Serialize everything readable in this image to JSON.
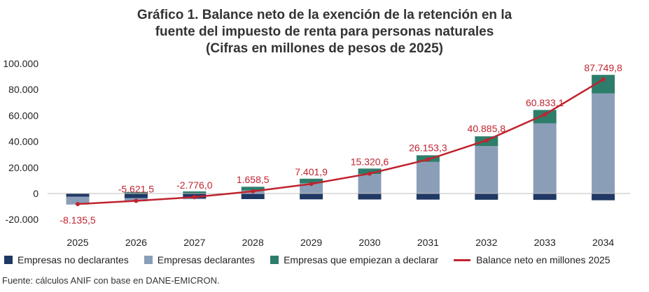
{
  "chart_data": {
    "type": "bar",
    "title_lines": [
      "Gráfico 1. Balance neto de la exención de la retención en la",
      "fuente del impuesto de renta para personas naturales",
      "(Cifras en millones de pesos de 2025)"
    ],
    "categories": [
      "2025",
      "2026",
      "2027",
      "2028",
      "2029",
      "2030",
      "2031",
      "2032",
      "2033",
      "2034"
    ],
    "y_ticks": [
      -20000,
      0,
      20000,
      40000,
      60000,
      80000,
      100000
    ],
    "y_tick_labels": [
      "-20.000",
      "0",
      "20.000",
      "40.000",
      "60.000",
      "80.000",
      "100.000"
    ],
    "ylim": [
      -20000,
      100000
    ],
    "series": [
      {
        "name": "Empresas no declarantes",
        "kind": "bar",
        "color": "#1f3864",
        "values": [
          -2500,
          -3500,
          -3800,
          -4300,
          -4500,
          -4600,
          -4700,
          -4800,
          -4900,
          -5200
        ]
      },
      {
        "name": "Empresas declarantes",
        "kind": "bar",
        "color": "#8b9eb8",
        "values": [
          -6000,
          -2500,
          -600,
          2400,
          7900,
          15000,
          24300,
          36500,
          54000,
          77000
        ]
      },
      {
        "name": "Empresas que empiezan a declarar",
        "kind": "bar",
        "color": "#2e7d6b",
        "values": [
          0,
          1000,
          1600,
          2800,
          3500,
          4200,
          5100,
          7500,
          10300,
          14300
        ]
      },
      {
        "name": "Balance neto en millones 2025",
        "kind": "line",
        "color": "#c0232e",
        "values": [
          -8135.5,
          -5621.5,
          -2776.0,
          1658.5,
          7401.9,
          15320.6,
          26153.3,
          40885.8,
          60833.1,
          87749.8
        ],
        "labels": [
          "-8.135,5",
          "-5.621,5",
          "-2.776,0",
          "1.658,5",
          "7.401,9",
          "15.320,6",
          "26.153,3",
          "40.885,8",
          "60.833,1",
          "87.749,8"
        ]
      }
    ],
    "legend": [
      "Empresas no declarantes",
      "Empresas declarantes",
      "Empresas que empiezan a declarar",
      "Balance neto en millones 2025"
    ],
    "label_color": "#c0232e",
    "grid": false,
    "source": "Fuente: cálculos ANIF con base en DANE-EMICRON."
  }
}
